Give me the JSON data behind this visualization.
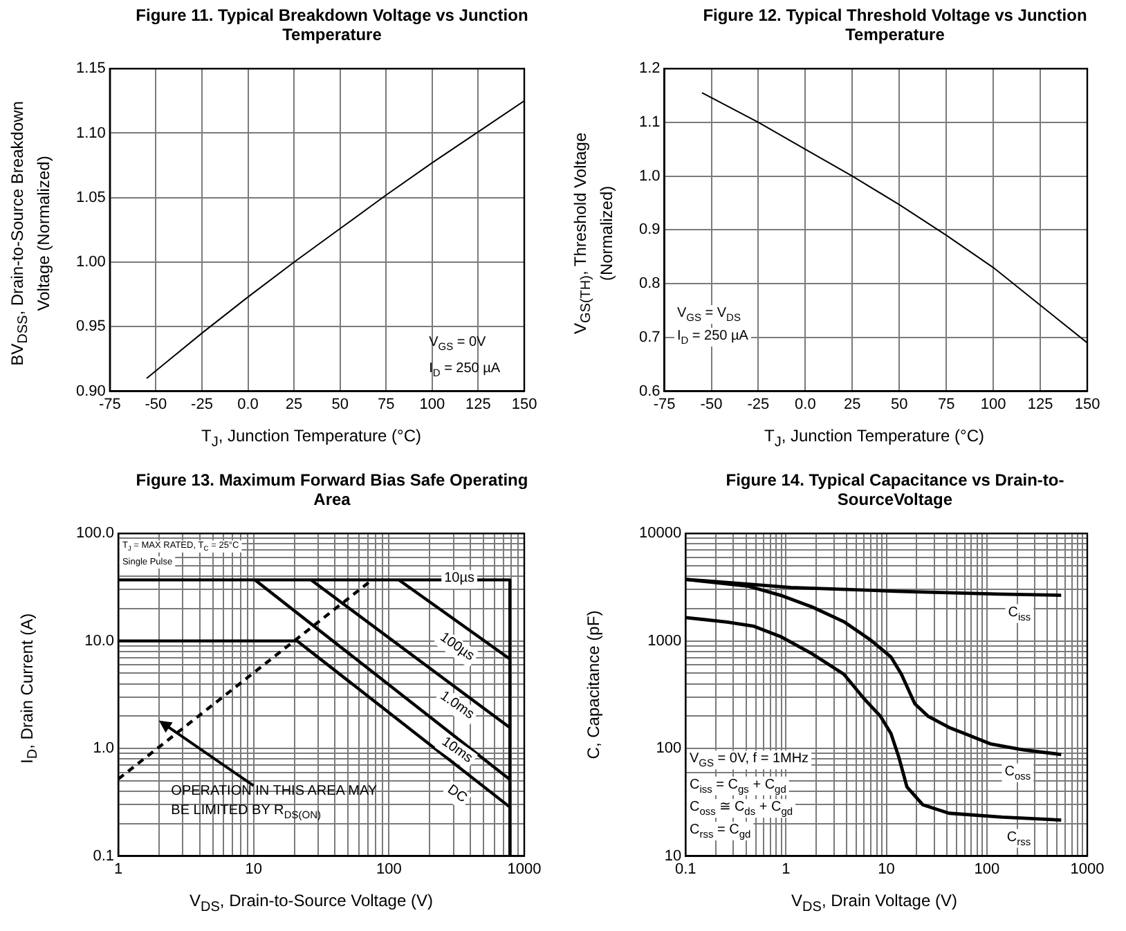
{
  "chart_data": [
    {
      "type": "line",
      "title": "Figure 11.   Typical Breakdown Voltage vs Junction Temperature",
      "xlabel": "T$_{J}$, Junction Temperature (°C)",
      "ylabel": "BV$_{DSS}$, Drain-to-Source Breakdown Voltage (Normalized)",
      "series": [
        {
          "color": "#000000",
          "x": [
            -55,
            -25,
            0,
            25,
            50,
            75,
            100,
            125,
            150
          ],
          "values": [
            0.91,
            0.945,
            0.973,
            1.0,
            1.026,
            1.052,
            1.077,
            1.101,
            1.125
          ]
        }
      ],
      "xlim": [
        -75,
        150
      ],
      "xticks": [
        -75,
        -50,
        -25,
        {
          "value": 0,
          "label": "0.0"
        },
        25,
        50,
        75,
        100,
        125,
        150
      ],
      "ylim": [
        0.9,
        1.15
      ],
      "yticks": [
        {
          "value": 0.9,
          "label": "0.90"
        },
        0.95,
        {
          "value": 1,
          "label": "1.00"
        },
        1.05,
        {
          "value": 1.1,
          "label": "1.10"
        },
        1.15
      ],
      "grid": true,
      "annotations": [
        "V$_{GS}$ = 0V",
        "I$_{D}$ = 250 µA"
      ]
    },
    {
      "type": "line",
      "title": "Figure 12.   Typical Threshold Voltage vs Junction Temperature",
      "xlabel": "T$_{J}$, Junction Temperature (°C)",
      "ylabel": "V$_{GS(TH)}$, Threshold Voltage (Normalized)",
      "series": [
        {
          "color": "#000000",
          "x": [
            -55,
            -25,
            0,
            25,
            50,
            75,
            100,
            125,
            150
          ],
          "values": [
            1.155,
            1.1,
            1.05,
            1.0,
            0.947,
            0.89,
            0.83,
            0.76,
            0.69
          ]
        }
      ],
      "xlim": [
        -75,
        150
      ],
      "xticks": [
        -75,
        -50,
        -25,
        {
          "value": 0,
          "label": "0.0"
        },
        25,
        50,
        75,
        100,
        125,
        150
      ],
      "ylim": [
        0.6,
        1.2
      ],
      "yticks": [
        0.6,
        0.7,
        0.8,
        0.9,
        {
          "value": 1,
          "label": "1.0"
        },
        1.1,
        1.2
      ],
      "grid": true,
      "annotations": [
        "V$_{GS}$ = V$_{DS}$",
        "I$_{D}$ = 250 µA"
      ]
    },
    {
      "type": "line",
      "title": "Figure 13.   Maximum Forward Bias Safe Operating Area",
      "xlabel": "V$_{DS}$, Drain-to-Source Voltage (V)",
      "ylabel": "I$_{D}$, Drain Current (A)",
      "series": [
        {
          "color": "#000000",
          "x": [
            1,
            783,
            783
          ],
          "values": [
            37,
            37,
            0.1
          ]
        },
        {
          "color": "#000000",
          "x": [
            118,
            783
          ],
          "values": [
            37,
            6.8
          ]
        },
        {
          "color": "#000000",
          "x": [
            26.5,
            783
          ],
          "values": [
            37,
            1.56
          ]
        },
        {
          "color": "#000000",
          "x": [
            10.2,
            783
          ],
          "values": [
            37,
            0.515
          ]
        },
        {
          "color": "#000000",
          "x": [
            1,
            21,
            783
          ],
          "values": [
            10,
            10,
            0.285
          ]
        },
        {
          "color": "#000000",
          "line_style": "dashed",
          "x": [
            1,
            75
          ],
          "values": [
            0.52,
            37
          ]
        }
      ],
      "log": "xy",
      "xlim": [
        1,
        1000
      ],
      "xticks": [
        1,
        {
          "value": 2,
          "label": null
        },
        {
          "value": 3,
          "label": null
        },
        {
          "value": 4,
          "label": null
        },
        {
          "value": 5,
          "label": null
        },
        {
          "value": 6,
          "label": null
        },
        {
          "value": 7,
          "label": null
        },
        {
          "value": 8,
          "label": null
        },
        {
          "value": 9,
          "label": null
        },
        10,
        {
          "value": 20,
          "label": null
        },
        {
          "value": 30,
          "label": null
        },
        {
          "value": 40,
          "label": null
        },
        {
          "value": 50,
          "label": null
        },
        {
          "value": 60,
          "label": null
        },
        {
          "value": 70,
          "label": null
        },
        {
          "value": 80,
          "label": null
        },
        {
          "value": 90,
          "label": null
        },
        100,
        {
          "value": 200,
          "label": null
        },
        {
          "value": 300,
          "label": null
        },
        {
          "value": 400,
          "label": null
        },
        {
          "value": 500,
          "label": null
        },
        {
          "value": 600,
          "label": null
        },
        {
          "value": 700,
          "label": null
        },
        {
          "value": 800,
          "label": null
        },
        {
          "value": 900,
          "label": null
        },
        1000
      ],
      "ylim": [
        0.1,
        100
      ],
      "yticks": [
        0.1,
        {
          "value": 0.2,
          "label": null
        },
        {
          "value": 0.3,
          "label": null
        },
        {
          "value": 0.4,
          "label": null
        },
        {
          "value": 0.5,
          "label": null
        },
        {
          "value": 0.6,
          "label": null
        },
        {
          "value": 0.7,
          "label": null
        },
        {
          "value": 0.8,
          "label": null
        },
        {
          "value": 0.9,
          "label": null
        },
        {
          "value": 1,
          "label": "1.0"
        },
        {
          "value": 2,
          "label": null
        },
        {
          "value": 3,
          "label": null
        },
        {
          "value": 4,
          "label": null
        },
        {
          "value": 5,
          "label": null
        },
        {
          "value": 6,
          "label": null
        },
        {
          "value": 7,
          "label": null
        },
        {
          "value": 8,
          "label": null
        },
        {
          "value": 9,
          "label": null
        },
        {
          "value": 10,
          "label": "10.0"
        },
        {
          "value": 20,
          "label": null
        },
        {
          "value": 30,
          "label": null
        },
        {
          "value": 40,
          "label": null
        },
        {
          "value": 50,
          "label": null
        },
        {
          "value": 60,
          "label": null
        },
        {
          "value": 70,
          "label": null
        },
        {
          "value": 80,
          "label": null
        },
        {
          "value": 90,
          "label": null
        },
        {
          "value": 100,
          "label": "100.0"
        }
      ],
      "grid": true,
      "annotations": [
        "T$_{J}$ = MAX RATED, T$_{C}$ = 25°C",
        "Single Pulse",
        "OPERATION IN THIS AREA MAY",
        "BE LIMITED BY R$_{DS(ON)}$",
        "10µs",
        "100µs",
        "1.0ms",
        "10ms",
        "DC"
      ]
    },
    {
      "type": "line",
      "title": "Figure 14.   Typical Capacitance vs Drain-to-SourceVoltage",
      "xlabel": "V$_{DS}$, Drain Voltage (V)",
      "ylabel": "C, Capacitance (pF)",
      "series": [
        {
          "name": "C$_{iss}$",
          "color": "#000000",
          "x": [
            0.1,
            0.335,
            1.12,
            12.6,
            127,
            550
          ],
          "values": [
            3740,
            3430,
            3140,
            2900,
            2730,
            2660
          ]
        },
        {
          "name": "C$_{oss}$",
          "color": "#000000",
          "x": [
            0.1,
            0.43,
            0.88,
            1.82,
            3.77,
            6.87,
            11.1,
            14.1,
            19.2,
            25.9,
            42,
            60,
            110,
            230,
            550
          ],
          "values": [
            3740,
            3220,
            2660,
            2070,
            1510,
            1030,
            710,
            490,
            260,
            200,
            157,
            138,
            110,
            97,
            88
          ]
        },
        {
          "name": "C$_{rss}$",
          "color": "#000000",
          "x": [
            0.1,
            0.26,
            0.48,
            0.88,
            1.82,
            3.77,
            6,
            8.7,
            11.1,
            13.3,
            16,
            23,
            42,
            143,
            550
          ],
          "values": [
            1650,
            1500,
            1370,
            1100,
            760,
            490,
            290,
            200,
            138,
            83,
            44,
            30,
            25,
            23,
            21.6
          ]
        }
      ],
      "log": "xy",
      "xlim": [
        0.1,
        1000
      ],
      "xticks": [
        0.1,
        {
          "value": 0.2,
          "label": null
        },
        {
          "value": 0.3,
          "label": null
        },
        {
          "value": 0.4,
          "label": null
        },
        {
          "value": 0.5,
          "label": null
        },
        {
          "value": 0.6,
          "label": null
        },
        {
          "value": 0.7,
          "label": null
        },
        {
          "value": 0.8,
          "label": null
        },
        {
          "value": 0.9,
          "label": null
        },
        1,
        {
          "value": 2,
          "label": null
        },
        {
          "value": 3,
          "label": null
        },
        {
          "value": 4,
          "label": null
        },
        {
          "value": 5,
          "label": null
        },
        {
          "value": 6,
          "label": null
        },
        {
          "value": 7,
          "label": null
        },
        {
          "value": 8,
          "label": null
        },
        {
          "value": 9,
          "label": null
        },
        10,
        {
          "value": 20,
          "label": null
        },
        {
          "value": 30,
          "label": null
        },
        {
          "value": 40,
          "label": null
        },
        {
          "value": 50,
          "label": null
        },
        {
          "value": 60,
          "label": null
        },
        {
          "value": 70,
          "label": null
        },
        {
          "value": 80,
          "label": null
        },
        {
          "value": 90,
          "label": null
        },
        100,
        {
          "value": 200,
          "label": null
        },
        {
          "value": 300,
          "label": null
        },
        {
          "value": 400,
          "label": null
        },
        {
          "value": 500,
          "label": null
        },
        {
          "value": 600,
          "label": null
        },
        {
          "value": 700,
          "label": null
        },
        {
          "value": 800,
          "label": null
        },
        {
          "value": 900,
          "label": null
        },
        1000
      ],
      "ylim": [
        10,
        10000
      ],
      "yticks": [
        10,
        {
          "value": 20,
          "label": null
        },
        {
          "value": 30,
          "label": null
        },
        {
          "value": 40,
          "label": null
        },
        {
          "value": 50,
          "label": null
        },
        {
          "value": 60,
          "label": null
        },
        {
          "value": 70,
          "label": null
        },
        {
          "value": 80,
          "label": null
        },
        {
          "value": 90,
          "label": null
        },
        100,
        {
          "value": 200,
          "label": null
        },
        {
          "value": 300,
          "label": null
        },
        {
          "value": 400,
          "label": null
        },
        {
          "value": 500,
          "label": null
        },
        {
          "value": 600,
          "label": null
        },
        {
          "value": 700,
          "label": null
        },
        {
          "value": 800,
          "label": null
        },
        {
          "value": 900,
          "label": null
        },
        1000,
        {
          "value": 2000,
          "label": null
        },
        {
          "value": 3000,
          "label": null
        },
        {
          "value": 4000,
          "label": null
        },
        {
          "value": 5000,
          "label": null
        },
        {
          "value": 6000,
          "label": null
        },
        {
          "value": 7000,
          "label": null
        },
        {
          "value": 8000,
          "label": null
        },
        {
          "value": 9000,
          "label": null
        },
        10000
      ],
      "grid": true,
      "annotations": [
        "V$_{GS}$ = 0V, f = 1MHz",
        "C$_{iss}$ = C$_{gs}$ + C$_{gd}$",
        "C$_{oss}$ ≅ C$_{ds}$ + C$_{gd}$",
        "C$_{rss}$ = C$_{gd}$"
      ]
    }
  ]
}
